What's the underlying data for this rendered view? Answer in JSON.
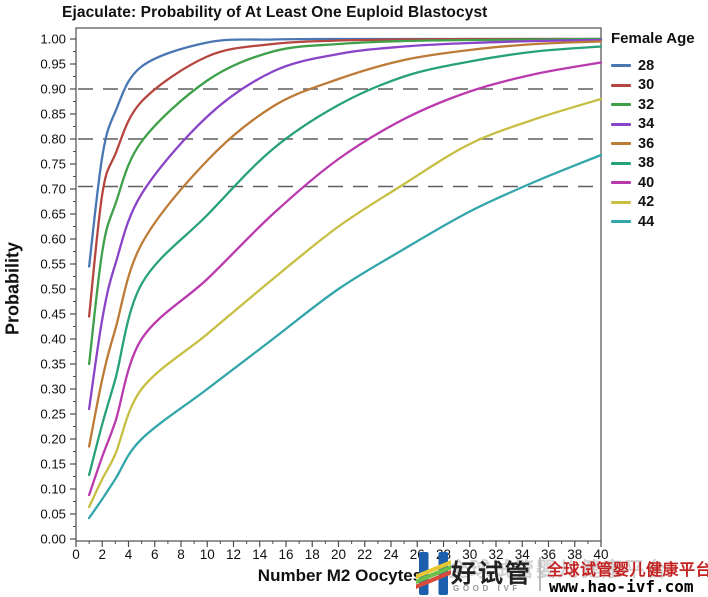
{
  "chart_data": {
    "type": "line",
    "title": "Ejaculate: Probability of At Least One Euploid Blastocyst",
    "xlabel": "Number M2 Oocytes",
    "ylabel": "Probability",
    "xlim": [
      0,
      40
    ],
    "ylim": [
      0.0,
      1.0
    ],
    "grid": false,
    "xticks": [
      0,
      2,
      4,
      6,
      8,
      10,
      12,
      14,
      16,
      18,
      20,
      22,
      24,
      26,
      28,
      30,
      32,
      34,
      36,
      38,
      40
    ],
    "yticks": [
      "0.00",
      "0.05",
      "0.10",
      "0.15",
      "0.20",
      "0.25",
      "0.30",
      "0.35",
      "0.40",
      "0.45",
      "0.50",
      "0.55",
      "0.60",
      "0.65",
      "0.70",
      "0.75",
      "0.80",
      "0.85",
      "0.90",
      "0.95",
      "1.00"
    ],
    "reference_lines": {
      "style": "dashed",
      "color": "#5f5f5f",
      "y_values": [
        0.705,
        0.8,
        0.9
      ]
    },
    "legend_title": "Female Age",
    "legend_position": "right",
    "x": [
      1,
      2,
      3,
      5,
      10,
      15,
      20,
      25,
      30,
      35,
      40
    ],
    "series": [
      {
        "name": "28",
        "color": "#4a77b4",
        "values": [
          0.545,
          0.765,
          0.855,
          0.945,
          0.993,
          0.999,
          1.0,
          1.0,
          1.0,
          1.0,
          1.0
        ]
      },
      {
        "name": "30",
        "color": "#b5453f",
        "values": [
          0.445,
          0.69,
          0.77,
          0.875,
          0.965,
          0.99,
          0.997,
          0.999,
          1.0,
          1.0,
          1.0
        ]
      },
      {
        "name": "32",
        "color": "#3fa04a",
        "values": [
          0.35,
          0.575,
          0.67,
          0.795,
          0.917,
          0.975,
          0.99,
          0.996,
          0.998,
          0.999,
          1.0
        ]
      },
      {
        "name": "34",
        "color": "#8a44c8",
        "values": [
          0.26,
          0.44,
          0.55,
          0.69,
          0.845,
          0.935,
          0.97,
          0.985,
          0.992,
          0.996,
          0.998
        ]
      },
      {
        "name": "36",
        "color": "#bd7b38",
        "values": [
          0.185,
          0.32,
          0.42,
          0.59,
          0.757,
          0.865,
          0.92,
          0.958,
          0.978,
          0.99,
          0.995
        ]
      },
      {
        "name": "38",
        "color": "#27a17b",
        "values": [
          0.128,
          0.23,
          0.32,
          0.51,
          0.648,
          0.78,
          0.868,
          0.925,
          0.955,
          0.975,
          0.985
        ]
      },
      {
        "name": "40",
        "color": "#ba3aae",
        "values": [
          0.088,
          0.165,
          0.235,
          0.4,
          0.52,
          0.65,
          0.76,
          0.84,
          0.895,
          0.93,
          0.953
        ]
      },
      {
        "name": "42",
        "color": "#c7bf42",
        "values": [
          0.064,
          0.12,
          0.17,
          0.3,
          0.41,
          0.52,
          0.625,
          0.71,
          0.79,
          0.84,
          0.88
        ]
      },
      {
        "name": "44",
        "color": "#33a6ab",
        "values": [
          0.042,
          0.08,
          0.12,
          0.2,
          0.3,
          0.4,
          0.5,
          0.58,
          0.655,
          0.715,
          0.768
        ]
      }
    ]
  },
  "watermark": {
    "brand_cn": "好试管",
    "brand_en": "GOOD IVF",
    "tagline_cn": "全球试管婴儿健康平台",
    "tagline_color": "#c32222",
    "url": "www.hao-ivf.com",
    "ghost_text": "全球试管婴儿健康平台",
    "logo_blue": "#1b5fae",
    "logo_stripe_yellow": "#e8c832",
    "logo_stripe_green": "#6abf4b",
    "logo_stripe_red": "#d94a3a"
  }
}
